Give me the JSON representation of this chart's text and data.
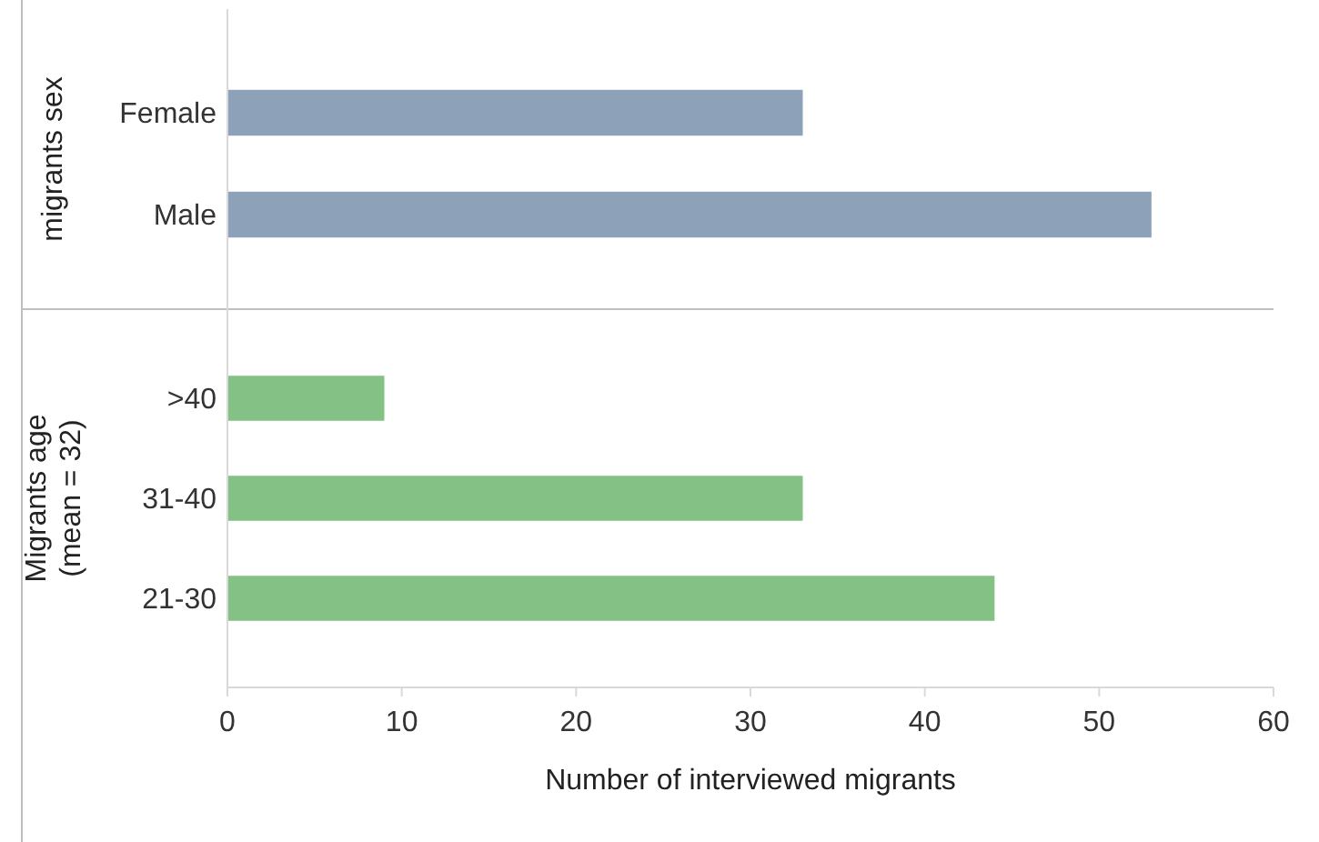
{
  "chart_data": [
    {
      "type": "bar",
      "orientation": "horizontal",
      "ylabel": "migrants sex",
      "categories": [
        "Female",
        "Male"
      ],
      "series": [
        {
          "color": "#8da2b9",
          "values": [
            33,
            53
          ]
        }
      ],
      "xlim": [
        0,
        60
      ],
      "xticks": [
        0,
        10,
        20,
        30,
        40,
        50,
        60
      ],
      "tick_labels": "y"
    },
    {
      "type": "bar",
      "orientation": "horizontal",
      "ylabel": "Migrants age\n(mean = 32)",
      "xlabel": "Number of interviewed migrants",
      "categories": [
        ">40",
        "31-40",
        "21-30"
      ],
      "series": [
        {
          "color": "#84c184",
          "values": [
            9,
            33,
            44
          ]
        }
      ],
      "xlim": [
        0,
        60
      ],
      "xticks": [
        0,
        10,
        20,
        30,
        40,
        50,
        60
      ]
    }
  ]
}
